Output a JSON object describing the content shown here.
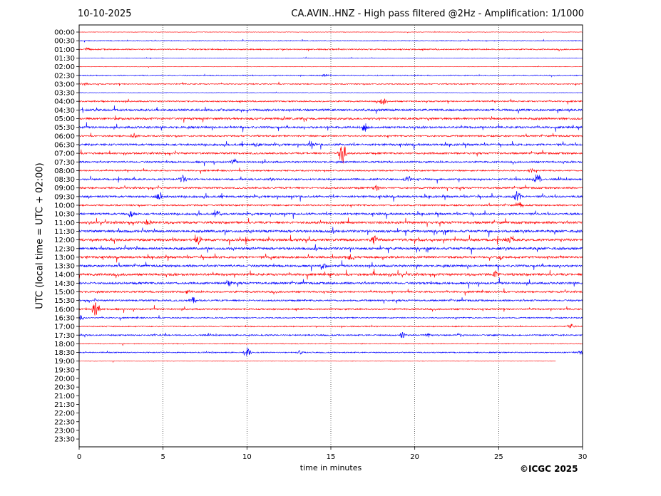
{
  "header": {
    "date": "10-10-2025",
    "station_title": "CA.AVIN..HNZ - High pass filtered @2Hz - Amplification: 1/1000"
  },
  "footer": {
    "copyright": "©ICGC 2025"
  },
  "chart_data": {
    "type": "line",
    "title": "CA.AVIN..HNZ - High pass filtered @2Hz - Amplification: 1/1000",
    "xlabel": "time in minutes",
    "ylabel": "UTC (local time = UTC + 02:00)",
    "xlim": [
      0,
      30
    ],
    "x_ticks": [
      "0",
      "5",
      "10",
      "15",
      "20",
      "25",
      "30"
    ],
    "x_tick_values": [
      0,
      5,
      10,
      15,
      20,
      25,
      30
    ],
    "vertical_grid_at_minutes": [
      5,
      10,
      15,
      20,
      25
    ],
    "grid": "vertical dotted",
    "row_labels": [
      "00:00",
      "00:30",
      "01:00",
      "01:30",
      "02:00",
      "02:30",
      "03:00",
      "03:30",
      "04:00",
      "04:30",
      "05:00",
      "05:30",
      "06:00",
      "06:30",
      "07:00",
      "07:30",
      "08:00",
      "08:30",
      "09:00",
      "09:30",
      "10:00",
      "10:30",
      "11:00",
      "11:30",
      "12:00",
      "12:30",
      "13:00",
      "13:30",
      "14:00",
      "14:30",
      "15:00",
      "15:30",
      "16:00",
      "16:30",
      "17:00",
      "17:30",
      "18:00",
      "18:30",
      "19:00",
      "19:30",
      "20:00",
      "20:30",
      "21:00",
      "21:30",
      "22:00",
      "22:30",
      "23:00",
      "23:30"
    ],
    "trace_colors": [
      "#ff0000",
      "#0000ff"
    ],
    "recorded_rows": 39,
    "last_row_end_minute": 28.4,
    "trace_noise_level": [
      0.3,
      0.5,
      0.8,
      0.3,
      0.3,
      0.6,
      0.7,
      0.3,
      0.9,
      1.4,
      1.4,
      1.3,
      1.0,
      1.3,
      1.2,
      1.1,
      0.9,
      1.1,
      1.1,
      1.3,
      1.0,
      1.3,
      1.5,
      1.6,
      1.6,
      1.6,
      1.4,
      1.4,
      1.5,
      1.4,
      1.1,
      1.1,
      1.0,
      0.8,
      0.7,
      0.9,
      0.5,
      0.7,
      0.3
    ],
    "events": [
      {
        "row": "01:00",
        "minute": 0.5,
        "amplitude": 2
      },
      {
        "row": "02:30",
        "minute": 14.6,
        "amplitude": 2
      },
      {
        "row": "03:00",
        "minute": 0.3,
        "amplitude": 2
      },
      {
        "row": "04:00",
        "minute": 18.1,
        "amplitude": 5
      },
      {
        "row": "05:30",
        "minute": 17.0,
        "amplitude": 6
      },
      {
        "row": "06:00",
        "minute": 3.3,
        "amplitude": 4
      },
      {
        "row": "06:30",
        "minute": 10.6,
        "amplitude": 3
      },
      {
        "row": "06:30",
        "minute": 13.8,
        "amplitude": 5
      },
      {
        "row": "07:00",
        "minute": 15.7,
        "amplitude": 18
      },
      {
        "row": "07:30",
        "minute": 9.2,
        "amplitude": 4
      },
      {
        "row": "08:00",
        "minute": 26.9,
        "amplitude": 3
      },
      {
        "row": "08:30",
        "minute": 6.2,
        "amplitude": 6
      },
      {
        "row": "08:30",
        "minute": 19.6,
        "amplitude": 5
      },
      {
        "row": "08:30",
        "minute": 27.3,
        "amplitude": 8
      },
      {
        "row": "09:00",
        "minute": 17.7,
        "amplitude": 5
      },
      {
        "row": "09:30",
        "minute": 4.8,
        "amplitude": 6
      },
      {
        "row": "09:30",
        "minute": 26.1,
        "amplitude": 9
      },
      {
        "row": "10:00",
        "minute": 26.3,
        "amplitude": 4
      },
      {
        "row": "10:30",
        "minute": 3.1,
        "amplitude": 5
      },
      {
        "row": "10:30",
        "minute": 8.3,
        "amplitude": 5
      },
      {
        "row": "11:00",
        "minute": 4.1,
        "amplitude": 4
      },
      {
        "row": "12:00",
        "minute": 7.1,
        "amplitude": 6
      },
      {
        "row": "12:00",
        "minute": 17.6,
        "amplitude": 6
      },
      {
        "row": "12:00",
        "minute": 25.6,
        "amplitude": 7
      },
      {
        "row": "13:00",
        "minute": 16.1,
        "amplitude": 4
      },
      {
        "row": "13:00",
        "minute": 25.1,
        "amplitude": 4
      },
      {
        "row": "13:30",
        "minute": 14.6,
        "amplitude": 4
      },
      {
        "row": "14:00",
        "minute": 24.8,
        "amplitude": 5
      },
      {
        "row": "14:30",
        "minute": 8.9,
        "amplitude": 4
      },
      {
        "row": "15:00",
        "minute": 6.5,
        "amplitude": 3
      },
      {
        "row": "15:30",
        "minute": 6.8,
        "amplitude": 4
      },
      {
        "row": "16:00",
        "minute": 1.0,
        "amplitude": 14
      },
      {
        "row": "16:30",
        "minute": 0.1,
        "amplitude": 4
      },
      {
        "row": "17:00",
        "minute": 29.3,
        "amplitude": 4
      },
      {
        "row": "17:30",
        "minute": 19.3,
        "amplitude": 5
      },
      {
        "row": "17:30",
        "minute": 20.8,
        "amplitude": 3
      },
      {
        "row": "17:30",
        "minute": 22.7,
        "amplitude": 3
      },
      {
        "row": "18:30",
        "minute": 10.0,
        "amplitude": 7
      },
      {
        "row": "18:30",
        "minute": 13.1,
        "amplitude": 3
      },
      {
        "row": "18:30",
        "minute": 29.9,
        "amplitude": 3
      }
    ]
  }
}
